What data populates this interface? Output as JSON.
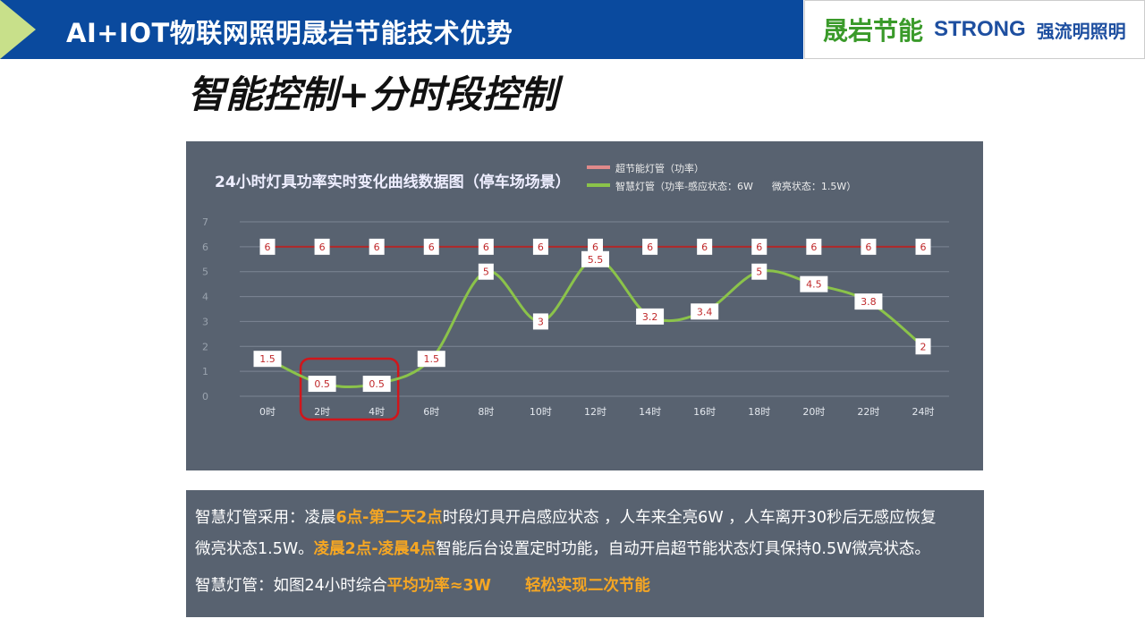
{
  "header": {
    "title": "AI+IOT物联网照明晟岩节能技术优势",
    "logo_cn": "晟岩节能",
    "logo_strong": "STRONG",
    "logo_sub": "强流明照明"
  },
  "slide_title": "智能控制+分时段控制",
  "chart_data": {
    "type": "line",
    "title": "24小时灯具功率实时变化曲线数据图（停车场场景）",
    "categories": [
      "0时",
      "2时",
      "4时",
      "6时",
      "8时",
      "10时",
      "12时",
      "14时",
      "16时",
      "18时",
      "20时",
      "22时",
      "24时"
    ],
    "series": [
      {
        "name": "超节能灯管（功率）",
        "color": "#b0282a",
        "legend_color": "#e08a8a",
        "values": [
          6,
          6,
          6,
          6,
          6,
          6,
          6,
          6,
          6,
          6,
          6,
          6,
          6
        ],
        "labels": [
          "6",
          "6",
          "6",
          "6",
          "6",
          "6",
          "6",
          "6",
          "6",
          "6",
          "6",
          "6",
          "6"
        ]
      },
      {
        "name": "智慧灯管（功率-感应状态：6W      微亮状态：1.5W）",
        "color": "#8bc34a",
        "smooth": true,
        "values": [
          1.5,
          0.5,
          0.5,
          1.5,
          5,
          3,
          5.5,
          3.2,
          3.4,
          5,
          4.5,
          3.8,
          2
        ],
        "labels": [
          "1.5",
          "0.5",
          "0.5",
          "1.5",
          "5",
          "3",
          "5.5",
          "3.2",
          "3.4",
          "5",
          "4.5",
          "3.8",
          "2"
        ]
      }
    ],
    "yticks": [
      0,
      1,
      2,
      3,
      4,
      5,
      6,
      7
    ],
    "ylim": [
      0,
      7
    ],
    "grid": true,
    "legend": "top-right",
    "highlight_categories": [
      "2时",
      "4时"
    ],
    "highlight_color": "#d0161b"
  },
  "text_panel": {
    "l1a": "智慧灯管采用：凌晨",
    "l1b": "6点-第二天2点",
    "l1c": "时段灯具开启感应状态 ，人车来全亮6W ，人车离开30秒后无感应恢复",
    "l2a": "微亮状态1.5W。",
    "l2b": "凌晨2点-凌晨4点",
    "l2c": "智能后台设置定时功能，自动开启超节能状态灯具保持0.5W微亮状态。",
    "l3a": "智慧灯管：如图24小时综合",
    "l3b": "平均功率≈3W",
    "l3c": "轻松实现二次节能"
  }
}
